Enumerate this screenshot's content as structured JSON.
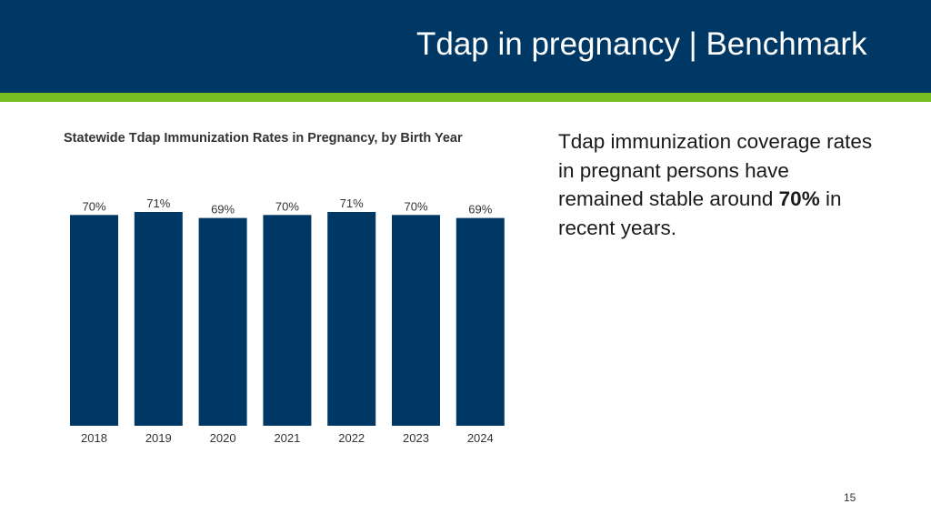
{
  "slide": {
    "title": "Tdap in pregnancy | Benchmark",
    "page_number": "15",
    "body_text_lead": "Tdap immunization coverage rates in pregnant persons have remained stable around",
    "body_text_highlight": "70%",
    "body_text_tail": " in recent years."
  },
  "colors": {
    "header_bg": "#003865",
    "accent_rule": "#78be20",
    "bar": "#003865"
  },
  "chart_data": {
    "type": "bar",
    "title": "Statewide Tdap Immunization Rates in Pregnancy, by Birth Year",
    "categories": [
      "2018",
      "2019",
      "2020",
      "2021",
      "2022",
      "2023",
      "2024"
    ],
    "values": [
      70,
      71,
      69,
      70,
      71,
      70,
      69
    ],
    "data_labels": [
      "70%",
      "71%",
      "69%",
      "70%",
      "71%",
      "70%",
      "69%"
    ],
    "xlabel": "",
    "ylabel": "",
    "ylim": [
      0,
      71
    ],
    "grid": false,
    "legend": "none"
  }
}
